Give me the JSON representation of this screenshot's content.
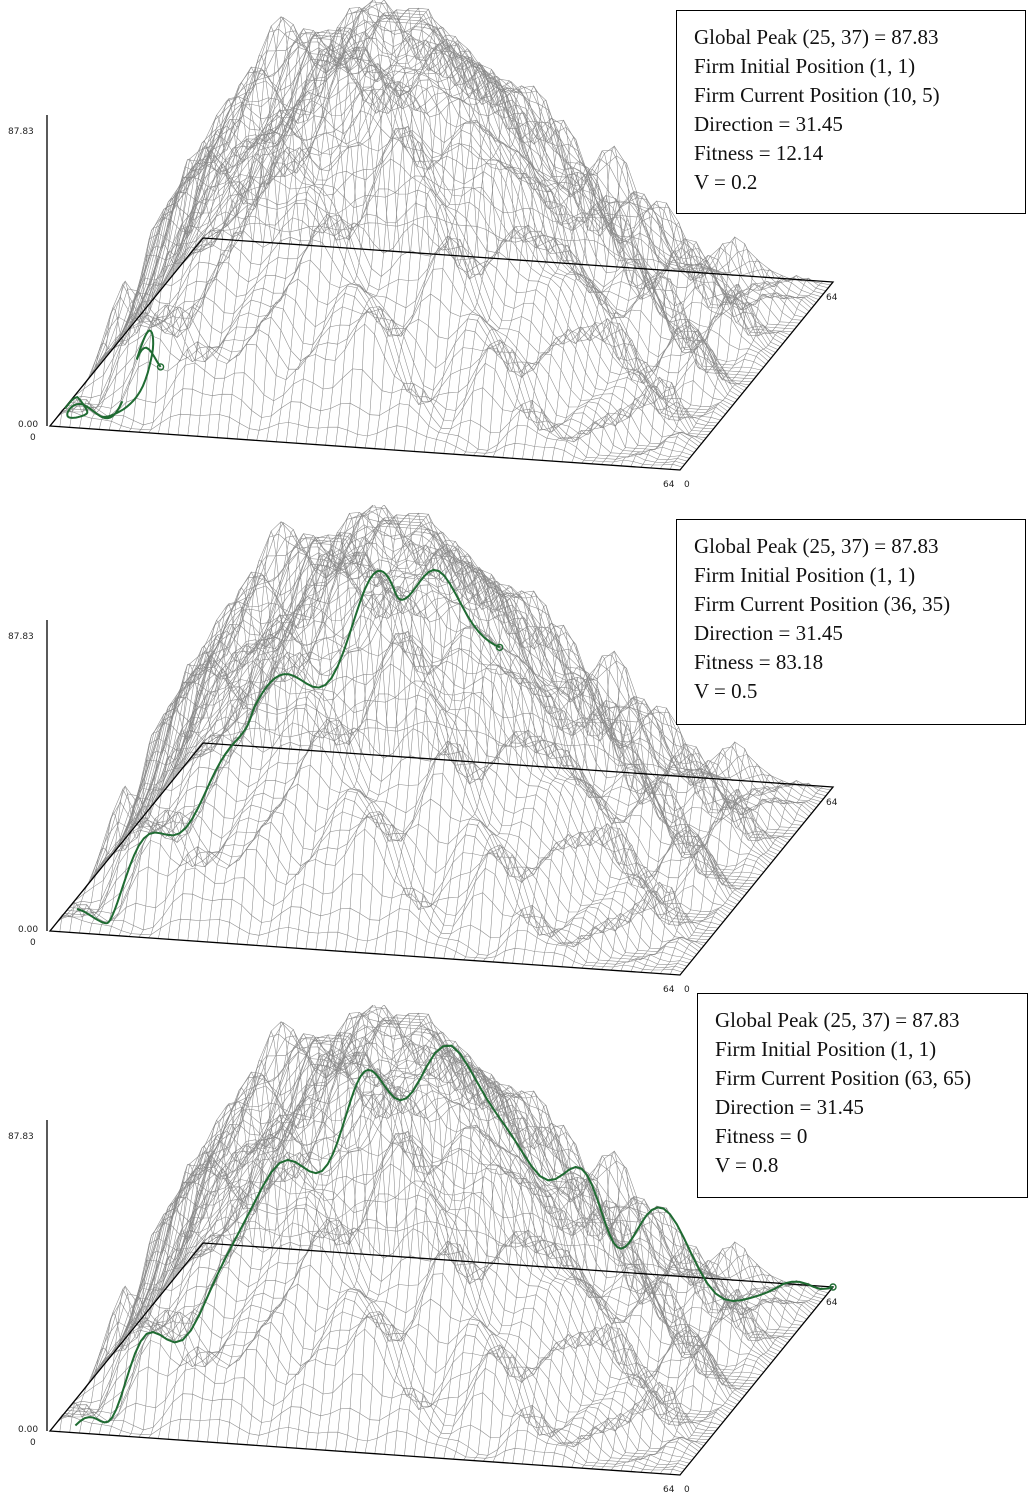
{
  "panels": [
    {
      "info": {
        "global_peak": "Global Peak (25, 37) = 87.83",
        "initial_position": "Firm Initial Position (1, 1)",
        "current_position": "Firm Current Position (10, 5)",
        "direction": "Direction = 31.45",
        "fitness": "Fitness = 12.14",
        "v": "V = 0.2"
      },
      "axis": {
        "zmax": "87.83",
        "zmin": "0.00",
        "origin": "0",
        "x_end": "64",
        "y_end": "64",
        "x_corner": "0"
      }
    },
    {
      "info": {
        "global_peak": "Global Peak (25, 37) = 87.83",
        "initial_position": "Firm Initial Position (1, 1)",
        "current_position": "Firm Current Position (36, 35)",
        "direction": "Direction = 31.45",
        "fitness": "Fitness = 83.18",
        "v": "V = 0.5"
      },
      "axis": {
        "zmax": "87.83",
        "zmin": "0.00",
        "origin": "0",
        "x_end": "64",
        "y_end": "64",
        "x_corner": "0"
      }
    },
    {
      "info": {
        "global_peak": "Global Peak (25, 37) = 87.83",
        "initial_position": "Firm Initial Position (1, 1)",
        "current_position": "Firm Current Position (63, 65)",
        "direction": "Direction = 31.45",
        "fitness": "Fitness = 0",
        "v": "V = 0.8"
      },
      "axis": {
        "zmax": "87.83",
        "zmin": "0.00",
        "origin": "0",
        "x_end": "64",
        "y_end": "64",
        "x_corner": "0"
      }
    }
  ],
  "chart_data": {
    "type": "surface-wireframe",
    "grid_size": 64,
    "z_range": [
      0,
      87.83
    ],
    "global_peak": {
      "x": 25,
      "y": 37,
      "z": 87.83
    },
    "colors": {
      "mesh": "#8a8a8a",
      "path": "#1f6b32",
      "axes": "#000000"
    },
    "paths": [
      {
        "start": [
          1,
          1
        ],
        "end": [
          10,
          5
        ],
        "end_fitness": 12.14,
        "v": 0.2
      },
      {
        "start": [
          1,
          1
        ],
        "end": [
          36,
          35
        ],
        "end_fitness": 83.18,
        "v": 0.5
      },
      {
        "start": [
          1,
          1
        ],
        "end": [
          63,
          65
        ],
        "end_fitness": 0,
        "v": 0.8
      }
    ]
  }
}
